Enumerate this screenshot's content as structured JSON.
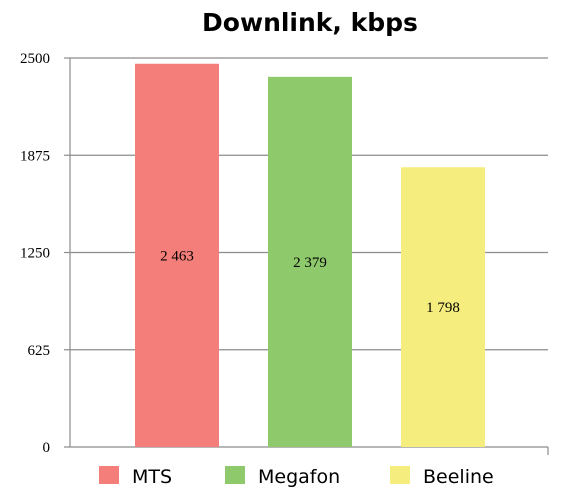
{
  "chart_data": {
    "type": "bar",
    "title": "Downlink, kbps",
    "xlabel": "",
    "ylabel": "",
    "categories": [
      "MTS",
      "Megafon",
      "Beeline"
    ],
    "series": [
      {
        "name": "",
        "values": [
          2463,
          2379,
          1798
        ],
        "data_labels": [
          "2 463",
          "2 379",
          "1 798"
        ]
      }
    ],
    "colors": [
      "#f47f7a",
      "#8ec96b",
      "#f5ee7e"
    ],
    "ylim": [
      0,
      2500
    ],
    "yticks": [
      0,
      625,
      1250,
      1875,
      2500
    ],
    "ytick_labels": [
      "0",
      "625",
      "1250",
      "1875",
      "2500"
    ],
    "grid": true,
    "legend": {
      "position": "bottom",
      "entries": [
        "MTS",
        "Megafon",
        "Beeline"
      ]
    }
  }
}
